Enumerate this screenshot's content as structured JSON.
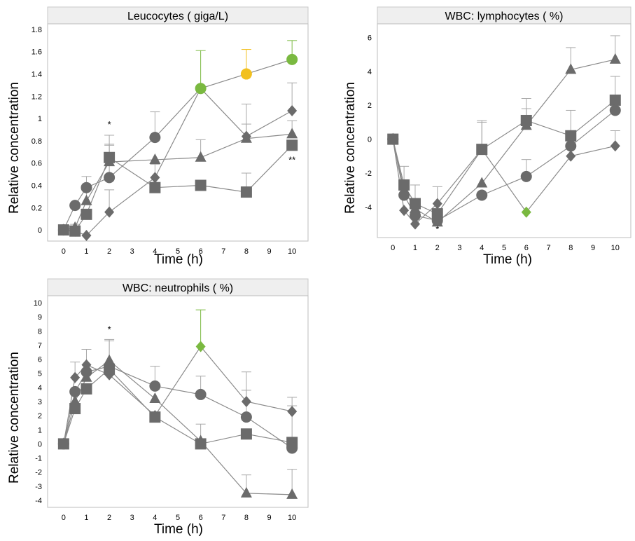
{
  "chart_data": [
    {
      "type": "line",
      "title": "Leucocytes ( giga/L)",
      "xlabel": "Time (h)",
      "ylabel": "Relative concentration",
      "xticks": [
        0,
        1,
        2,
        3,
        4,
        5,
        6,
        7,
        8,
        9,
        10
      ],
      "yticks": [
        0,
        0.2,
        0.4,
        0.6,
        0.8,
        1,
        1.2,
        1.4,
        1.6,
        1.8
      ],
      "xlim": [
        -0.7,
        10.7
      ],
      "ylim": [
        -0.1,
        1.85
      ],
      "annotations": [
        {
          "text": "*",
          "x": 2,
          "y": 0.92
        },
        {
          "text": "**",
          "x": 10,
          "y": 0.6
        }
      ],
      "series": [
        {
          "marker": "circle",
          "points": [
            [
              0,
              0
            ],
            [
              0.5,
              0.22
            ],
            [
              1,
              0.38
            ],
            [
              2,
              0.47
            ],
            [
              4,
              0.83
            ],
            [
              6,
              1.27
            ],
            [
              8,
              1.4
            ],
            [
              10,
              1.53
            ]
          ],
          "err": [
            null,
            null,
            null,
            0.3,
            0.23,
            0.34,
            0.22,
            0.17
          ],
          "colors": [
            "#6b6b6b",
            "#6b6b6b",
            "#6b6b6b",
            "#6b6b6b",
            "#6b6b6b",
            "#7ab940",
            "#f2c01e",
            "#7ab940"
          ]
        },
        {
          "marker": "square",
          "points": [
            [
              0,
              0
            ],
            [
              0.5,
              -0.01
            ],
            [
              1,
              0.14
            ],
            [
              2,
              0.65
            ],
            [
              4,
              0.38
            ],
            [
              6,
              0.4
            ],
            [
              8,
              0.34
            ],
            [
              10,
              0.76
            ]
          ],
          "err": [
            null,
            null,
            null,
            0.2,
            null,
            null,
            0.17,
            null
          ],
          "colors": []
        },
        {
          "marker": "triangle",
          "points": [
            [
              0,
              0
            ],
            [
              0.5,
              0.02
            ],
            [
              1,
              0.26
            ],
            [
              2,
              0.61
            ],
            [
              4,
              0.63
            ],
            [
              6,
              0.65
            ],
            [
              8,
              0.82
            ],
            [
              10,
              0.86
            ]
          ],
          "err": [
            null,
            null,
            0.22,
            0.15,
            null,
            0.16,
            0.13,
            0.12
          ],
          "colors": []
        },
        {
          "marker": "diamond",
          "points": [
            [
              0,
              0
            ],
            [
              0.5,
              -0.01
            ],
            [
              1,
              -0.05
            ],
            [
              2,
              0.16
            ],
            [
              4,
              0.47
            ],
            [
              6,
              1.27
            ],
            [
              8,
              0.84
            ],
            [
              10,
              1.07
            ]
          ],
          "err": [
            null,
            0.06,
            null,
            0.2,
            0.12,
            null,
            0.29,
            0.25
          ],
          "colors": []
        }
      ]
    },
    {
      "type": "line",
      "title": "WBC: lymphocytes ( %)",
      "xlabel": "Time (h)",
      "ylabel": "Relative concentration",
      "xticks": [
        0,
        1,
        2,
        3,
        4,
        5,
        6,
        7,
        8,
        9,
        10
      ],
      "yticks": [
        -4,
        -2,
        0,
        2,
        4,
        6
      ],
      "xlim": [
        -0.7,
        10.7
      ],
      "ylim": [
        -5.8,
        6.8
      ],
      "annotations": [
        {
          "text": "*",
          "x": 2,
          "y": -5.5
        }
      ],
      "series": [
        {
          "marker": "circle",
          "points": [
            [
              0,
              0
            ],
            [
              0.5,
              -3.3
            ],
            [
              1,
              -4.5
            ],
            [
              2,
              -4.8
            ],
            [
              4,
              -3.3
            ],
            [
              6,
              -2.2
            ],
            [
              8,
              -0.4
            ],
            [
              10,
              1.7
            ]
          ],
          "err": [
            null,
            null,
            null,
            null,
            null,
            1.0,
            null,
            null
          ],
          "colors": []
        },
        {
          "marker": "square",
          "points": [
            [
              0,
              0
            ],
            [
              0.5,
              -2.7
            ],
            [
              1,
              -3.8
            ],
            [
              2,
              -4.4
            ],
            [
              4,
              -0.6
            ],
            [
              6,
              1.1
            ],
            [
              8,
              0.2
            ],
            [
              10,
              2.3
            ]
          ],
          "err": [
            null,
            1.1,
            1.1,
            1.6,
            1.6,
            1.3,
            1.5,
            1.4
          ],
          "colors": []
        },
        {
          "marker": "triangle",
          "points": [
            [
              0,
              0
            ],
            [
              0.5,
              -3.0
            ],
            [
              1,
              -4.1
            ],
            [
              2,
              -4.9
            ],
            [
              4,
              -2.6
            ],
            [
              6,
              0.8
            ],
            [
              8,
              4.1
            ],
            [
              10,
              4.7
            ]
          ],
          "err": [
            null,
            null,
            null,
            null,
            null,
            1.0,
            1.3,
            1.4
          ],
          "colors": []
        },
        {
          "marker": "diamond",
          "points": [
            [
              0,
              0
            ],
            [
              0.5,
              -4.2
            ],
            [
              1,
              -5.0
            ],
            [
              2,
              -3.8
            ],
            [
              4,
              -0.6
            ],
            [
              6,
              -4.3
            ],
            [
              8,
              -1.0
            ],
            [
              10,
              -0.4
            ]
          ],
          "err": [
            null,
            null,
            null,
            null,
            1.7,
            null,
            null,
            0.9
          ],
          "colors": [
            "#6b6b6b",
            "#6b6b6b",
            "#6b6b6b",
            "#6b6b6b",
            "#6b6b6b",
            "#7ab940",
            "#6b6b6b",
            "#6b6b6b"
          ]
        }
      ]
    },
    {
      "type": "line",
      "title": "WBC: neutrophils ( %)",
      "xlabel": "Time (h)",
      "ylabel": "Relative concentration",
      "xticks": [
        0,
        1,
        2,
        3,
        4,
        5,
        6,
        7,
        8,
        9,
        10
      ],
      "yticks": [
        -4,
        -3,
        -2,
        -1,
        0,
        1,
        2,
        3,
        4,
        5,
        6,
        7,
        8,
        9,
        10
      ],
      "xlim": [
        -0.7,
        10.7
      ],
      "ylim": [
        -4.5,
        10.5
      ],
      "annotations": [
        {
          "text": "*",
          "x": 2,
          "y": 7.9
        }
      ],
      "series": [
        {
          "marker": "circle",
          "points": [
            [
              0,
              0
            ],
            [
              0.5,
              3.7
            ],
            [
              1,
              5.1
            ],
            [
              2,
              5.5
            ],
            [
              4,
              4.1
            ],
            [
              6,
              3.5
            ],
            [
              8,
              1.9
            ],
            [
              10,
              -0.3
            ]
          ],
          "err": [
            null,
            null,
            null,
            null,
            1.4,
            1.3,
            1.9,
            3.0
          ],
          "colors": []
        },
        {
          "marker": "square",
          "points": [
            [
              0,
              0
            ],
            [
              0.5,
              2.5
            ],
            [
              1,
              3.9
            ],
            [
              2,
              5.3
            ],
            [
              4,
              1.9
            ],
            [
              6,
              0.0
            ],
            [
              8,
              0.7
            ],
            [
              10,
              0.1
            ]
          ],
          "err": [
            null,
            null,
            null,
            null,
            null,
            1.4,
            null,
            null
          ],
          "colors": []
        },
        {
          "marker": "triangle",
          "points": [
            [
              0,
              0
            ],
            [
              0.5,
              3.0
            ],
            [
              1,
              4.7
            ],
            [
              2,
              5.9
            ],
            [
              4,
              3.2
            ],
            [
              6,
              0.2
            ],
            [
              8,
              -3.5
            ],
            [
              10,
              -3.6
            ]
          ],
          "err": [
            null,
            null,
            null,
            1.4,
            null,
            null,
            1.3,
            1.8
          ],
          "colors": []
        },
        {
          "marker": "diamond",
          "points": [
            [
              0,
              0
            ],
            [
              0.5,
              4.7
            ],
            [
              1,
              5.6
            ],
            [
              2,
              4.9
            ],
            [
              4,
              2.0
            ],
            [
              6,
              6.9
            ],
            [
              8,
              3.0
            ],
            [
              10,
              2.3
            ]
          ],
          "err": [
            null,
            1.1,
            1.1,
            2.5,
            null,
            2.6,
            2.1,
            1.0
          ],
          "colors": [
            "#6b6b6b",
            "#6b6b6b",
            "#6b6b6b",
            "#6b6b6b",
            "#6b6b6b",
            "#7ab940",
            "#6b6b6b",
            "#6b6b6b"
          ]
        }
      ]
    }
  ]
}
